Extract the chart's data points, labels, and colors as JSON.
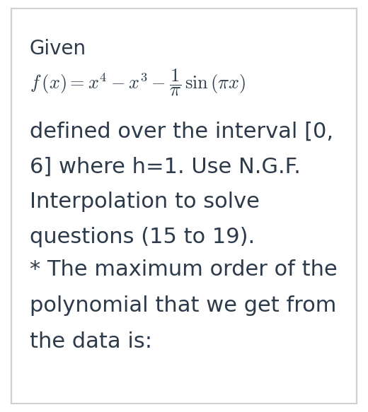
{
  "background_color": "#ffffff",
  "border_color": "#d0d0d0",
  "text_color": "#2d3a4a",
  "given_label": "Given",
  "body_text_1": "defined over the interval [0,",
  "body_text_2": "6] where h=1. Use N.G.F.",
  "body_text_3": "Interpolation to solve",
  "body_text_4": "questions (15 to 19).",
  "note_text_1": "* The maximum order of the",
  "note_text_2": "polynomial that we get from",
  "note_text_3": "the data is:",
  "given_fontsize": 20,
  "formula_fontsize": 19,
  "body_fontsize": 22,
  "note_fontsize": 22,
  "fig_width": 5.2,
  "fig_height": 5.83,
  "dpi": 100
}
